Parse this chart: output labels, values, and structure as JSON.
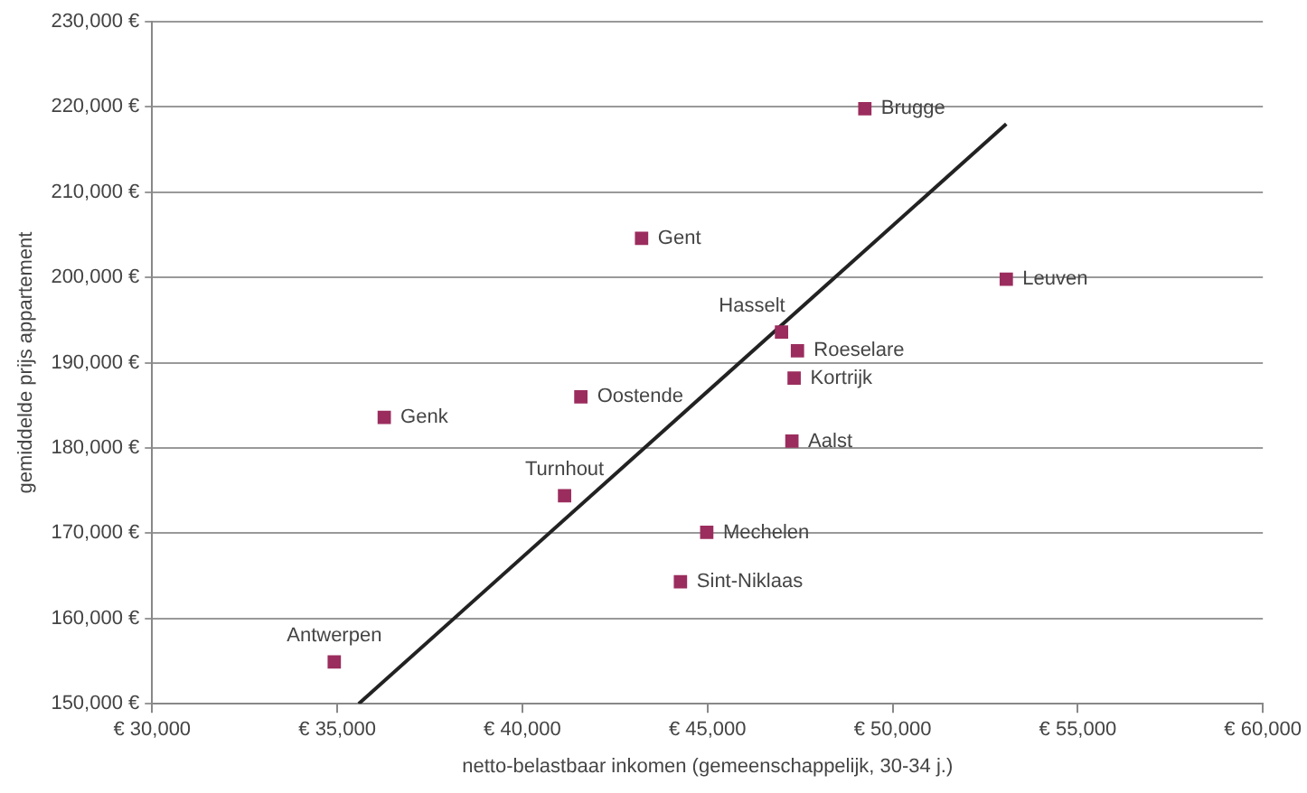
{
  "chart_data": {
    "type": "scatter",
    "xlabel": "netto-belastbaar inkomen (gemeenschappelijk, 30-34 j.)",
    "ylabel": "gemiddelde prijs appartement",
    "x": [
      49250,
      43220,
      53070,
      47000,
      47430,
      47340,
      41580,
      36270,
      47280,
      41140,
      44980,
      44270,
      34920
    ],
    "series": [
      {
        "type": "scatter",
        "color": "#9b2d5e",
        "marker": "square",
        "values": [
          219800,
          204600,
          199800,
          193600,
          191400,
          188200,
          186000,
          183600,
          180800,
          174400,
          170100,
          164300,
          154900
        ]
      },
      {
        "type": "line",
        "color": "#222222",
        "marker": "none",
        "line_style": "solid",
        "x": [
          35580,
          53070
        ],
        "values": [
          150000,
          218000
        ]
      }
    ],
    "annotations": [
      {
        "text": "Brugge",
        "x": 49250,
        "y": 219800
      },
      {
        "text": "Gent",
        "x": 43220,
        "y": 204600
      },
      {
        "text": "Leuven",
        "x": 53070,
        "y": 199800
      },
      {
        "text": "Hasselt",
        "x": 47000,
        "y": 193600
      },
      {
        "text": "Roeselare",
        "x": 47430,
        "y": 191400
      },
      {
        "text": "Kortrijk",
        "x": 47340,
        "y": 188200
      },
      {
        "text": "Oostende",
        "x": 41580,
        "y": 186000
      },
      {
        "text": "Genk",
        "x": 36270,
        "y": 183600
      },
      {
        "text": "Aalst",
        "x": 47280,
        "y": 180800
      },
      {
        "text": "Turnhout",
        "x": 41140,
        "y": 174400
      },
      {
        "text": "Mechelen",
        "x": 44980,
        "y": 170100
      },
      {
        "text": "Sint-Niklaas",
        "x": 44270,
        "y": 164300
      },
      {
        "text": "Antwerpen",
        "x": 34920,
        "y": 154900
      }
    ],
    "xlim": [
      30000,
      60000
    ],
    "xticks": [
      {
        "value": 30000,
        "label": "€ 30,000"
      },
      {
        "value": 35000,
        "label": "€ 35,000"
      },
      {
        "value": 40000,
        "label": "€ 40,000"
      },
      {
        "value": 45000,
        "label": "€ 45,000"
      },
      {
        "value": 50000,
        "label": "€ 50,000"
      },
      {
        "value": 55000,
        "label": "€ 55,000"
      },
      {
        "value": 60000,
        "label": "€ 60,000"
      }
    ],
    "ylim": [
      150000,
      230000
    ],
    "yticks": [
      {
        "value": 150000,
        "label": "150,000 €"
      },
      {
        "value": 160000,
        "label": "160,000 €"
      },
      {
        "value": 170000,
        "label": "170,000 €"
      },
      {
        "value": 180000,
        "label": "180,000 €"
      },
      {
        "value": 190000,
        "label": "190,000 €"
      },
      {
        "value": 200000,
        "label": "200,000 €"
      },
      {
        "value": 210000,
        "label": "210,000 €"
      },
      {
        "value": 220000,
        "label": "220,000 €"
      },
      {
        "value": 230000,
        "label": "230,000 €"
      }
    ],
    "grid": "y",
    "legend": false
  }
}
